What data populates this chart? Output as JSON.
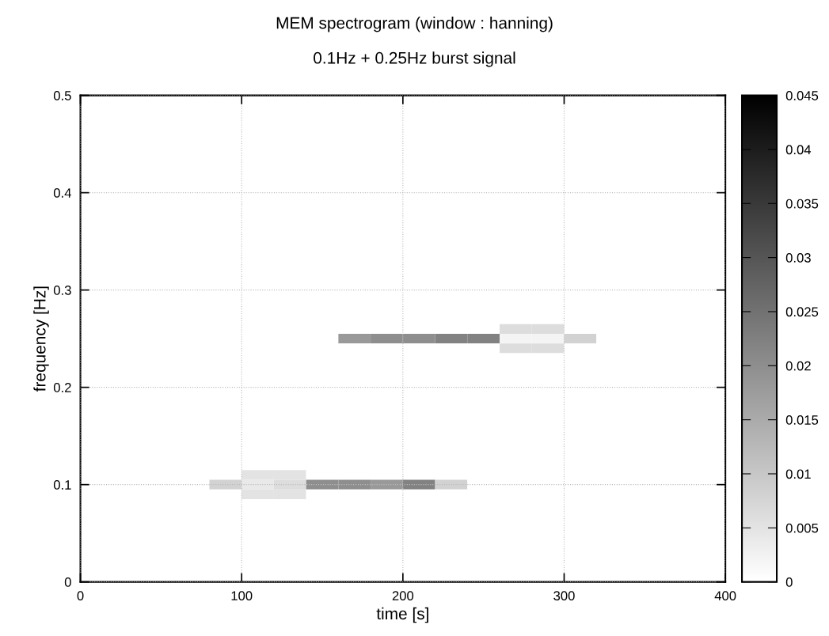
{
  "chart_data": {
    "type": "heatmap",
    "title": "MEM spectrogram (window : hanning)",
    "subtitle": "0.1Hz + 0.25Hz burst signal",
    "xlabel": "time [s]",
    "ylabel": "frequency [Hz]",
    "x": [
      10,
      30,
      50,
      70,
      90,
      110,
      130,
      150,
      170,
      190,
      210,
      230,
      250,
      270,
      290,
      310,
      330,
      350,
      370,
      390
    ],
    "y": [
      0.5,
      0.49,
      0.48,
      0.47,
      0.46,
      0.45,
      0.44,
      0.43,
      0.42,
      0.41,
      0.4,
      0.39,
      0.38,
      0.37,
      0.36,
      0.35,
      0.34,
      0.33,
      0.32,
      0.31,
      0.3,
      0.29,
      0.28,
      0.27,
      0.26,
      0.25,
      0.24,
      0.23,
      0.22,
      0.21,
      0.2,
      0.19,
      0.18,
      0.17,
      0.16,
      0.15,
      0.14,
      0.13,
      0.12,
      0.11,
      0.1,
      0.09,
      0.08,
      0.07,
      0.06,
      0.05,
      0.04,
      0.03,
      0.02,
      0.01,
      0
    ],
    "cells": [
      [
        0,
        0,
        0,
        0,
        0,
        0,
        0,
        0,
        0,
        0,
        0,
        0,
        0,
        0,
        0,
        0,
        0,
        0,
        0,
        0
      ],
      [
        0,
        0,
        0,
        0,
        0,
        0,
        0,
        0,
        0,
        0,
        0,
        0,
        0,
        0,
        0,
        0,
        0,
        0,
        0,
        0
      ],
      [
        0,
        0,
        0,
        0,
        0,
        0,
        0,
        0,
        0,
        0,
        0,
        0,
        0,
        0,
        0,
        0,
        0,
        0,
        0,
        0
      ],
      [
        0,
        0,
        0,
        0,
        0,
        0,
        0,
        0,
        0,
        0,
        0,
        0,
        0,
        0,
        0,
        0,
        0,
        0,
        0,
        0
      ],
      [
        0,
        0,
        0,
        0,
        0,
        0,
        0,
        0,
        0,
        0,
        0,
        0,
        0,
        0,
        0,
        0,
        0,
        0,
        0,
        0
      ],
      [
        0,
        0,
        0,
        0,
        0,
        0,
        0,
        0,
        0,
        0,
        0,
        0,
        0,
        0,
        0,
        0,
        0,
        0,
        0,
        0
      ],
      [
        0,
        0,
        0,
        0,
        0,
        0,
        0,
        0,
        0,
        0,
        0,
        0,
        0,
        0,
        0,
        0,
        0,
        0,
        0,
        0
      ],
      [
        0,
        0,
        0,
        0,
        0,
        0,
        0,
        0,
        0,
        0,
        0,
        0,
        0,
        0,
        0,
        0,
        0,
        0,
        0,
        0
      ],
      [
        0,
        0,
        0,
        0,
        0,
        0,
        0,
        0,
        0,
        0,
        0,
        0,
        0,
        0,
        0,
        0,
        0,
        0,
        0,
        0
      ],
      [
        0,
        0,
        0,
        0,
        0,
        0,
        0,
        0,
        0,
        0,
        0,
        0,
        0,
        0,
        0,
        0,
        0,
        0,
        0,
        0
      ],
      [
        0,
        0,
        0,
        0,
        0,
        0,
        0,
        0,
        0,
        0,
        0,
        0,
        0,
        0,
        0,
        0,
        0,
        0,
        0,
        0
      ],
      [
        0,
        0,
        0,
        0,
        0,
        0,
        0,
        0,
        0,
        0,
        0,
        0,
        0,
        0,
        0,
        0,
        0,
        0,
        0,
        0
      ],
      [
        0,
        0,
        0,
        0,
        0,
        0,
        0,
        0,
        0,
        0,
        0,
        0,
        0,
        0,
        0,
        0,
        0,
        0,
        0,
        0
      ],
      [
        0,
        0,
        0,
        0,
        0,
        0,
        0,
        0,
        0,
        0,
        0,
        0,
        0,
        0,
        0,
        0,
        0,
        0,
        0,
        0
      ],
      [
        0,
        0,
        0,
        0,
        0,
        0,
        0,
        0,
        0,
        0,
        0,
        0,
        0,
        0,
        0,
        0,
        0,
        0,
        0,
        0
      ],
      [
        0,
        0,
        0,
        0,
        0,
        0,
        0,
        0,
        0,
        0,
        0,
        0,
        0,
        0,
        0,
        0,
        0,
        0,
        0,
        0
      ],
      [
        0,
        0,
        0,
        0,
        0,
        0,
        0,
        0,
        0,
        0,
        0,
        0,
        0,
        0,
        0,
        0,
        0,
        0,
        0,
        0
      ],
      [
        0,
        0,
        0,
        0,
        0,
        0,
        0,
        0,
        0,
        0,
        0,
        0,
        0,
        0,
        0,
        0,
        0,
        0,
        0,
        0
      ],
      [
        0,
        0,
        0,
        0,
        0,
        0,
        0,
        0,
        0,
        0,
        0,
        0,
        0,
        0,
        0,
        0,
        0,
        0,
        0,
        0
      ],
      [
        0,
        0,
        0,
        0,
        0,
        0,
        0,
        0,
        0,
        0,
        0,
        0,
        0,
        0,
        0,
        0,
        0,
        0,
        0,
        0
      ],
      [
        0,
        0,
        0,
        0,
        0,
        0,
        0,
        0,
        0,
        0,
        0,
        0,
        0,
        0,
        0,
        0,
        0,
        0,
        0,
        0
      ],
      [
        0,
        0,
        0,
        0,
        0,
        0,
        0,
        0,
        0,
        0,
        0,
        0,
        0,
        0,
        0,
        0,
        0,
        0,
        0,
        0
      ],
      [
        0,
        0,
        0,
        0,
        0,
        0,
        0,
        0,
        0,
        0,
        0,
        0,
        0,
        0,
        0,
        0,
        0,
        0,
        0,
        0
      ],
      [
        0,
        0,
        0,
        0,
        0,
        0,
        0,
        0,
        0,
        0,
        0,
        0,
        0,
        0,
        0,
        0,
        0,
        0,
        0,
        0
      ],
      [
        0,
        0,
        0,
        0,
        0,
        0,
        0,
        0,
        0,
        0,
        0,
        0,
        0,
        0.006,
        0.006,
        0,
        0,
        0,
        0,
        0
      ],
      [
        0,
        0,
        0,
        0,
        0,
        0,
        0,
        0,
        0.018,
        0.02,
        0.02,
        0.022,
        0.022,
        0.002,
        0.002,
        0.008,
        0,
        0,
        0,
        0
      ],
      [
        0,
        0,
        0,
        0,
        0,
        0,
        0,
        0,
        0,
        0,
        0,
        0,
        0,
        0.006,
        0.006,
        0,
        0,
        0,
        0,
        0
      ],
      [
        0,
        0,
        0,
        0,
        0,
        0,
        0,
        0,
        0,
        0,
        0,
        0,
        0,
        0,
        0,
        0,
        0,
        0,
        0,
        0
      ],
      [
        0,
        0,
        0,
        0,
        0,
        0,
        0,
        0,
        0,
        0,
        0,
        0,
        0,
        0,
        0,
        0,
        0,
        0,
        0,
        0
      ],
      [
        0,
        0,
        0,
        0,
        0,
        0,
        0,
        0,
        0,
        0,
        0,
        0,
        0,
        0,
        0,
        0,
        0,
        0,
        0,
        0
      ],
      [
        0,
        0,
        0,
        0,
        0,
        0,
        0,
        0,
        0,
        0,
        0,
        0,
        0,
        0,
        0,
        0,
        0,
        0,
        0,
        0
      ],
      [
        0,
        0,
        0,
        0,
        0,
        0,
        0,
        0,
        0,
        0,
        0,
        0,
        0,
        0,
        0,
        0,
        0,
        0,
        0,
        0
      ],
      [
        0,
        0,
        0,
        0,
        0,
        0,
        0,
        0,
        0,
        0,
        0,
        0,
        0,
        0,
        0,
        0,
        0,
        0,
        0,
        0
      ],
      [
        0,
        0,
        0,
        0,
        0,
        0,
        0,
        0,
        0,
        0,
        0,
        0,
        0,
        0,
        0,
        0,
        0,
        0,
        0,
        0
      ],
      [
        0,
        0,
        0,
        0,
        0,
        0,
        0,
        0,
        0,
        0,
        0,
        0,
        0,
        0,
        0,
        0,
        0,
        0,
        0,
        0
      ],
      [
        0,
        0,
        0,
        0,
        0,
        0,
        0,
        0,
        0,
        0,
        0,
        0,
        0,
        0,
        0,
        0,
        0,
        0,
        0,
        0
      ],
      [
        0,
        0,
        0,
        0,
        0,
        0,
        0,
        0,
        0,
        0,
        0,
        0,
        0,
        0,
        0,
        0,
        0,
        0,
        0,
        0
      ],
      [
        0,
        0,
        0,
        0,
        0,
        0,
        0,
        0,
        0,
        0,
        0,
        0,
        0,
        0,
        0,
        0,
        0,
        0,
        0,
        0
      ],
      [
        0,
        0,
        0,
        0,
        0,
        0,
        0,
        0,
        0,
        0,
        0,
        0,
        0,
        0,
        0,
        0,
        0,
        0,
        0,
        0
      ],
      [
        0,
        0,
        0,
        0,
        0,
        0.005,
        0.005,
        0,
        0,
        0,
        0,
        0,
        0,
        0,
        0,
        0,
        0,
        0,
        0,
        0
      ],
      [
        0,
        0,
        0,
        0,
        0.008,
        0.004,
        0.006,
        0.02,
        0.02,
        0.018,
        0.022,
        0.008,
        0,
        0,
        0,
        0,
        0,
        0,
        0,
        0
      ],
      [
        0,
        0,
        0,
        0,
        0,
        0.005,
        0.005,
        0,
        0,
        0,
        0,
        0,
        0,
        0,
        0,
        0,
        0,
        0,
        0,
        0
      ],
      [
        0,
        0,
        0,
        0,
        0,
        0,
        0,
        0,
        0,
        0,
        0,
        0,
        0,
        0,
        0,
        0,
        0,
        0,
        0,
        0
      ],
      [
        0,
        0,
        0,
        0,
        0,
        0,
        0,
        0,
        0,
        0,
        0,
        0,
        0,
        0,
        0,
        0,
        0,
        0,
        0,
        0
      ],
      [
        0,
        0,
        0,
        0,
        0,
        0,
        0,
        0,
        0,
        0,
        0,
        0,
        0,
        0,
        0,
        0,
        0,
        0,
        0,
        0
      ],
      [
        0,
        0,
        0,
        0,
        0,
        0,
        0,
        0,
        0,
        0,
        0,
        0,
        0,
        0,
        0,
        0,
        0,
        0,
        0,
        0
      ],
      [
        0,
        0,
        0,
        0,
        0,
        0,
        0,
        0,
        0,
        0,
        0,
        0,
        0,
        0,
        0,
        0,
        0,
        0,
        0,
        0
      ],
      [
        0,
        0,
        0,
        0,
        0,
        0,
        0,
        0,
        0,
        0,
        0,
        0,
        0,
        0,
        0,
        0,
        0,
        0,
        0,
        0
      ],
      [
        0,
        0,
        0,
        0,
        0,
        0,
        0,
        0,
        0,
        0,
        0,
        0,
        0,
        0,
        0,
        0,
        0,
        0,
        0,
        0
      ],
      [
        0,
        0,
        0,
        0,
        0,
        0,
        0,
        0,
        0,
        0,
        0,
        0,
        0,
        0,
        0,
        0,
        0,
        0,
        0,
        0
      ],
      [
        0,
        0,
        0,
        0,
        0,
        0,
        0,
        0,
        0,
        0,
        0,
        0,
        0,
        0,
        0,
        0,
        0,
        0,
        0,
        0
      ]
    ],
    "clim": [
      0,
      0.045
    ],
    "cticks": [
      0,
      0.005,
      0.01,
      0.015,
      0.02,
      0.025,
      0.03,
      0.035,
      0.04,
      0.045
    ],
    "xlim": [
      0,
      400
    ],
    "xticks": [
      0,
      100,
      200,
      300,
      400
    ],
    "ylim": [
      0,
      0.5
    ],
    "yticks": [
      0,
      0.1,
      0.2,
      0.3,
      0.4,
      0.5
    ],
    "grid": true
  }
}
